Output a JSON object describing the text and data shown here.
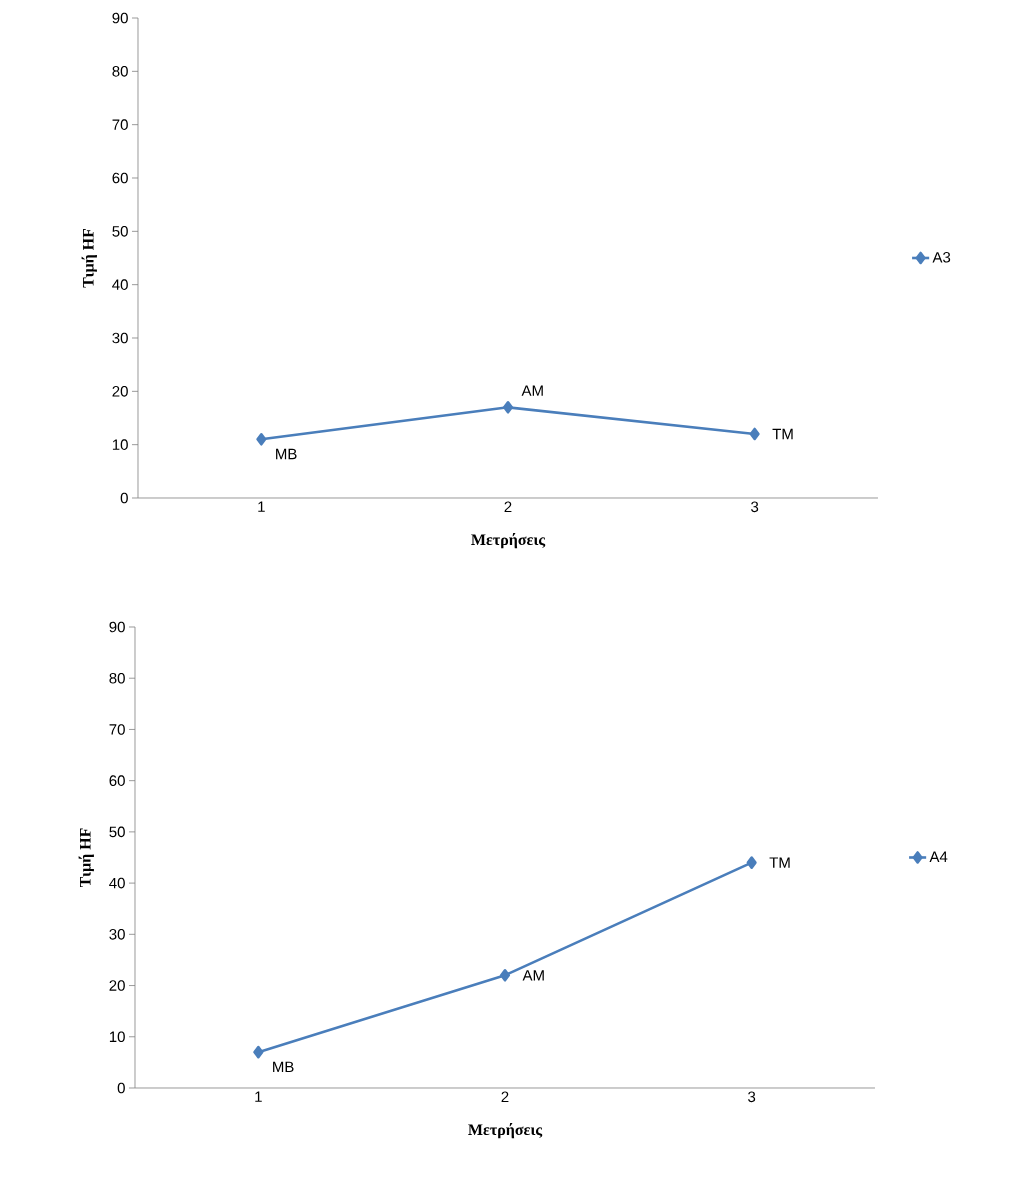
{
  "chart_data": [
    {
      "type": "line",
      "categories": [
        "1",
        "2",
        "3"
      ],
      "xlabel": "Μετρήσεις",
      "ylabel": "Τιμή HF",
      "ylim": [
        0,
        90
      ],
      "yticks": [
        0,
        10,
        20,
        30,
        40,
        50,
        60,
        70,
        80,
        90
      ],
      "grid": false,
      "legend": "right",
      "marker": "diamond",
      "line_style": "solid",
      "series": [
        {
          "name": "A3",
          "color": "#4a7ebb",
          "values": [
            11,
            17,
            12
          ]
        }
      ],
      "annotations": [
        {
          "text": "MB",
          "x": "1",
          "y": 11
        },
        {
          "text": "AM",
          "x": "2",
          "y": 17
        },
        {
          "text": "TM",
          "x": "3",
          "y": 12
        }
      ]
    },
    {
      "type": "line",
      "categories": [
        "1",
        "2",
        "3"
      ],
      "xlabel": "Μετρήσεις",
      "ylabel": "Τιμή HF",
      "ylim": [
        0,
        90
      ],
      "yticks": [
        0,
        10,
        20,
        30,
        40,
        50,
        60,
        70,
        80,
        90
      ],
      "grid": false,
      "legend": "right",
      "marker": "diamond",
      "line_style": "solid",
      "series": [
        {
          "name": "A4",
          "color": "#4a7ebb",
          "values": [
            7,
            22,
            44
          ]
        }
      ],
      "annotations": [
        {
          "text": "MB",
          "x": "1",
          "y": 7
        },
        {
          "text": "AM",
          "x": "2",
          "y": 22
        },
        {
          "text": "TM",
          "x": "3",
          "y": 44
        }
      ]
    }
  ]
}
